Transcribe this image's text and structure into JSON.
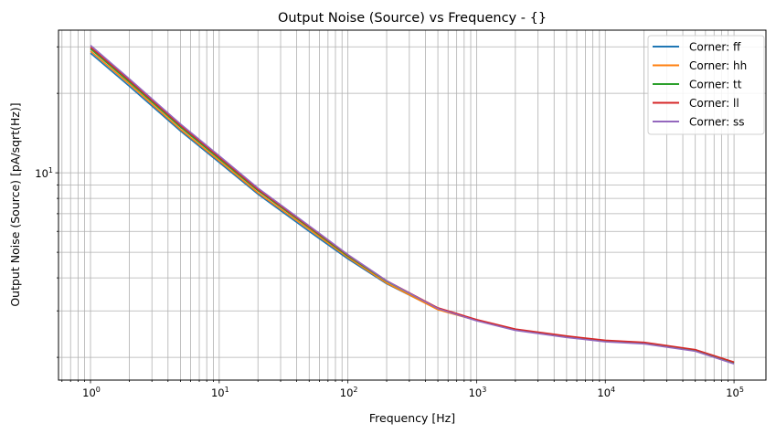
{
  "chart_data": {
    "type": "line",
    "title": "Output Noise (Source) vs Frequency - {}",
    "xlabel": "Frequency [Hz]",
    "ylabel": "Output Noise (Source) [pA/sqrt(Hz)]",
    "xscale": "log",
    "yscale": "log",
    "xlim": [
      0.564,
      177000
    ],
    "ylim": [
      1.64,
      34.7
    ],
    "grid": "major and minor, both axes",
    "legend_position": "top-right",
    "x_ticks": [
      1,
      10,
      100,
      1000,
      10000,
      100000
    ],
    "x_tick_labels": [
      "10^0",
      "10^1",
      "10^2",
      "10^3",
      "10^4",
      "10^5"
    ],
    "y_ticks": [
      10
    ],
    "y_tick_labels": [
      "10^1"
    ],
    "x": [
      1,
      2,
      5,
      10,
      20,
      50,
      100,
      200,
      500,
      1000,
      2000,
      5000,
      10000,
      20000,
      50000,
      100000
    ],
    "series": [
      {
        "name": "Corner: ff",
        "color": "#1f77b4",
        "values": [
          28.4,
          21.3,
          14.4,
          10.95,
          8.3,
          6.0,
          4.72,
          3.8,
          3.04,
          2.77,
          2.55,
          2.39,
          2.3,
          2.26,
          2.12,
          1.9
        ]
      },
      {
        "name": "Corner: hh",
        "color": "#ff7f0e",
        "values": [
          28.9,
          21.7,
          14.6,
          11.1,
          8.4,
          6.1,
          4.78,
          3.82,
          3.03,
          2.76,
          2.55,
          2.4,
          2.31,
          2.27,
          2.13,
          1.91
        ]
      },
      {
        "name": "Corner: tt",
        "color": "#2ca02c",
        "values": [
          29.5,
          22.1,
          14.9,
          11.3,
          8.56,
          6.2,
          4.84,
          3.88,
          3.07,
          2.77,
          2.55,
          2.4,
          2.31,
          2.27,
          2.13,
          1.91
        ]
      },
      {
        "name": "Corner: ll",
        "color": "#d62728",
        "values": [
          29.9,
          22.4,
          15.1,
          11.45,
          8.65,
          6.25,
          4.88,
          3.9,
          3.08,
          2.78,
          2.56,
          2.41,
          2.32,
          2.28,
          2.14,
          1.92
        ]
      },
      {
        "name": "Corner: ss",
        "color": "#9467bd",
        "values": [
          30.4,
          22.7,
          15.3,
          11.6,
          8.75,
          6.3,
          4.9,
          3.9,
          3.06,
          2.75,
          2.53,
          2.38,
          2.29,
          2.25,
          2.11,
          1.89
        ]
      }
    ]
  }
}
